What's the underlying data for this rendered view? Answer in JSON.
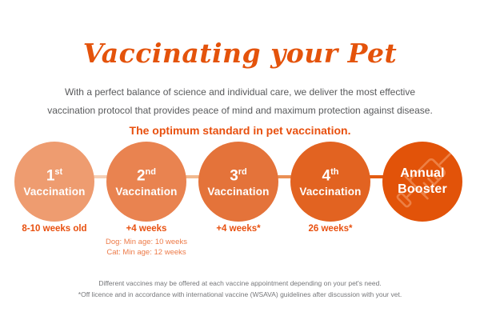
{
  "title": "Vaccinating your Pet",
  "intro": {
    "line1": "With a perfect balance of science and individual care, we deliver the most effective",
    "line2": "vaccination protocol that provides peace of mind and maximum protection against disease."
  },
  "subtitle": "The optimum standard in pet vaccination.",
  "timeline": {
    "centers": [
      68,
      183,
      298,
      413,
      528
    ],
    "connector_colors": [
      "#F6D0B6",
      "#F1B98F",
      "#EA9055",
      "#E35C12"
    ],
    "steps": [
      {
        "ordinal": "1",
        "suffix": "st",
        "label": "Vaccination",
        "circle_color": "#EE9C70",
        "note": "8-10 weeks old"
      },
      {
        "ordinal": "2",
        "suffix": "nd",
        "label": "Vaccination",
        "circle_color": "#E98350",
        "note": "+4 weeks",
        "subnotes": [
          "Dog: Min age: 10 weeks",
          "Cat: Min age: 12 weeks"
        ]
      },
      {
        "ordinal": "3",
        "suffix": "rd",
        "label": "Vaccination",
        "circle_color": "#E4733A",
        "note": "+4 weeks*"
      },
      {
        "ordinal": "4",
        "suffix": "th",
        "label": "Vaccination",
        "circle_color": "#E26321",
        "note": "26 weeks*"
      },
      {
        "label_line1": "Annual",
        "label_line2": "Booster",
        "circle_color": "#E25309",
        "icon": "syringe-icon"
      }
    ]
  },
  "footnotes": {
    "line1": "Different vaccines may be offered at each vaccine appointment depending on your pet's need.",
    "line2": "*Off licence and in accordance with international vaccine (WSAVA) guidelines after discussion with your vet."
  },
  "colors": {
    "accent": "#E4530B",
    "subtitle_text": "#E8500F",
    "note_text": "#E8500F",
    "subnote_text": "#ED7B49",
    "body_text": "#58595B",
    "footnote_text": "#76777A",
    "circle_text": "#FFFFFF",
    "syringe_stroke": "#F08C54"
  }
}
